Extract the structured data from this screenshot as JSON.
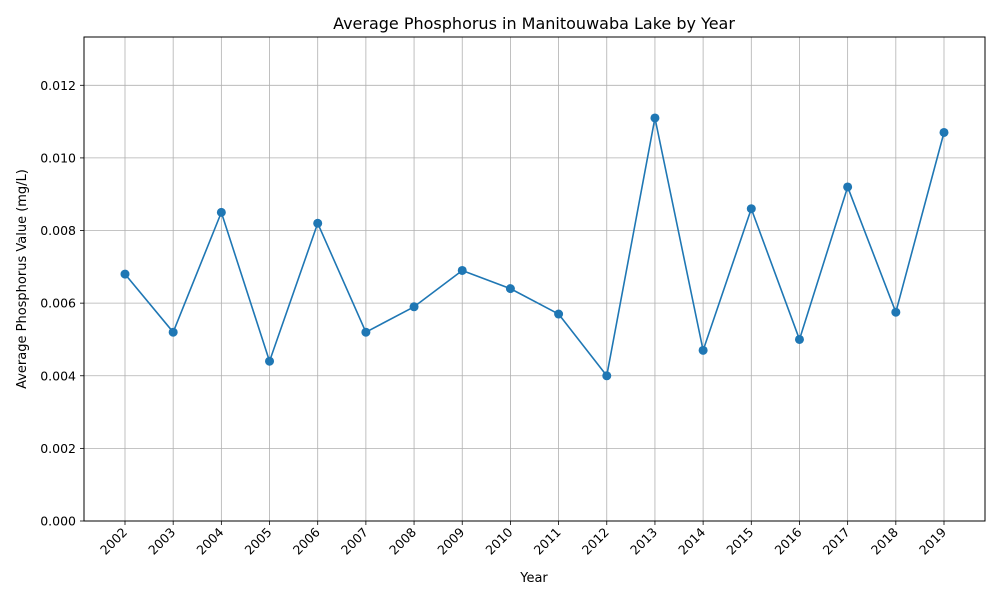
{
  "chart_data": {
    "type": "line",
    "title": "Average Phosphorus in Manitouwaba Lake by Year",
    "xlabel": "Year",
    "ylabel": "Average Phosphorus Value (mg/L)",
    "categories": [
      "2002",
      "2003",
      "2004",
      "2005",
      "2006",
      "2007",
      "2008",
      "2009",
      "2010",
      "2011",
      "2012",
      "2013",
      "2014",
      "2015",
      "2016",
      "2017",
      "2018",
      "2019"
    ],
    "series": [
      {
        "values": [
          0.0068,
          0.0052,
          0.0085,
          0.0044,
          0.0082,
          0.0052,
          0.0059,
          0.0069,
          0.0064,
          0.0057,
          0.004,
          0.0111,
          0.0047,
          0.0086,
          0.005,
          0.0092,
          0.00575,
          0.0107
        ],
        "color": "#1f77b4",
        "marker": "circle"
      }
    ],
    "ylim": [
      0,
      0.01333
    ],
    "yticks": [
      "0.000",
      "0.002",
      "0.004",
      "0.006",
      "0.008",
      "0.010",
      "0.012"
    ],
    "ytick_values": [
      0,
      0.002,
      0.004,
      0.006,
      0.008,
      0.01,
      0.012
    ],
    "grid": true,
    "x_tick_rotation": "45"
  }
}
